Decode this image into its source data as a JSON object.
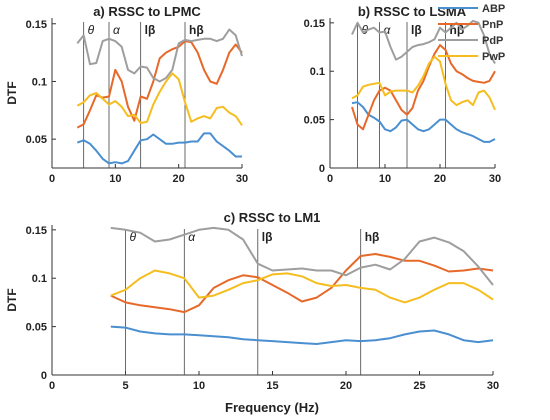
{
  "colors": {
    "ABP": "#4a8fd0",
    "PnP": "#e6692a",
    "PdP": "#9e9e9e",
    "PwP": "#f5bd1f",
    "axis": "#333333",
    "band_line": "#444444"
  },
  "legend": {
    "entries": [
      "ABP",
      "PnP",
      "PdP",
      "PwP"
    ],
    "placement": "top-right"
  },
  "bottom_xlabel": "Frequency (Hz)",
  "chart_data": [
    {
      "type": "line",
      "title": "a) RSSC to LPMC",
      "ylabel": "DTF",
      "xlabel": "",
      "xlim": [
        0,
        30
      ],
      "ylim": [
        0.025,
        0.155
      ],
      "xticks": [
        "0",
        "10",
        "20",
        "30"
      ],
      "yticks": [
        "0.05",
        "0.1",
        "0.15"
      ],
      "grid": false,
      "band_markers": [
        {
          "x": 5,
          "label": "θ"
        },
        {
          "x": 9,
          "label": "α"
        },
        {
          "x": 14,
          "label": "lβ"
        },
        {
          "x": 21,
          "label": "hβ"
        }
      ],
      "x": [
        4,
        5,
        6,
        7,
        8,
        9,
        10,
        11,
        12,
        13,
        14,
        15,
        16,
        17,
        18,
        19,
        20,
        21,
        22,
        23,
        24,
        25,
        26,
        27,
        28,
        29,
        30
      ],
      "series": [
        {
          "name": "ABP",
          "values": [
            0.047,
            0.049,
            0.046,
            0.04,
            0.033,
            0.029,
            0.03,
            0.029,
            0.031,
            0.04,
            0.049,
            0.05,
            0.054,
            0.05,
            0.046,
            0.046,
            0.047,
            0.047,
            0.048,
            0.048,
            0.055,
            0.055,
            0.048,
            0.044,
            0.04,
            0.035,
            0.035
          ]
        },
        {
          "name": "PnP",
          "values": [
            0.06,
            0.063,
            0.075,
            0.088,
            0.086,
            0.087,
            0.11,
            0.1,
            0.078,
            0.066,
            0.087,
            0.085,
            0.1,
            0.12,
            0.125,
            0.128,
            0.13,
            0.135,
            0.134,
            0.125,
            0.11,
            0.1,
            0.098,
            0.11,
            0.125,
            0.132,
            0.125
          ]
        },
        {
          "name": "PdP",
          "values": [
            0.133,
            0.14,
            0.115,
            0.116,
            0.135,
            0.137,
            0.135,
            0.13,
            0.11,
            0.107,
            0.113,
            0.112,
            0.103,
            0.1,
            0.103,
            0.11,
            0.133,
            0.136,
            0.135,
            0.136,
            0.137,
            0.137,
            0.135,
            0.137,
            0.145,
            0.14,
            0.122
          ]
        },
        {
          "name": "PwP",
          "values": [
            0.079,
            0.082,
            0.088,
            0.09,
            0.085,
            0.08,
            0.083,
            0.078,
            0.07,
            0.071,
            0.064,
            0.065,
            0.08,
            0.091,
            0.1,
            0.107,
            0.102,
            0.082,
            0.065,
            0.068,
            0.07,
            0.068,
            0.077,
            0.078,
            0.073,
            0.07,
            0.062
          ]
        }
      ]
    },
    {
      "type": "line",
      "title": "b) RSSC to LSMA",
      "ylabel": "",
      "xlabel": "",
      "xlim": [
        0,
        30
      ],
      "ylim": [
        0,
        0.155
      ],
      "xticks": [
        "0",
        "10",
        "20",
        "30"
      ],
      "yticks": [
        "0",
        "0.05",
        "0.1",
        "0.15"
      ],
      "grid": false,
      "band_markers": [
        {
          "x": 5,
          "label": "θ"
        },
        {
          "x": 9,
          "label": "α"
        },
        {
          "x": 14,
          "label": "lβ"
        },
        {
          "x": 21,
          "label": "hβ"
        }
      ],
      "x": [
        4,
        5,
        6,
        7,
        8,
        9,
        10,
        11,
        12,
        13,
        14,
        15,
        16,
        17,
        18,
        19,
        20,
        21,
        22,
        23,
        24,
        25,
        26,
        27,
        28,
        29,
        30
      ],
      "series": [
        {
          "name": "ABP",
          "values": [
            0.067,
            0.068,
            0.063,
            0.055,
            0.052,
            0.048,
            0.04,
            0.038,
            0.042,
            0.049,
            0.05,
            0.045,
            0.04,
            0.038,
            0.04,
            0.045,
            0.05,
            0.05,
            0.045,
            0.04,
            0.037,
            0.035,
            0.033,
            0.03,
            0.027,
            0.027,
            0.03
          ]
        },
        {
          "name": "PnP",
          "values": [
            0.063,
            0.045,
            0.04,
            0.055,
            0.07,
            0.08,
            0.083,
            0.08,
            0.07,
            0.06,
            0.055,
            0.062,
            0.08,
            0.09,
            0.105,
            0.118,
            0.127,
            0.122,
            0.108,
            0.1,
            0.097,
            0.093,
            0.09,
            0.089,
            0.088,
            0.09,
            0.1
          ]
        },
        {
          "name": "PdP",
          "values": [
            0.138,
            0.15,
            0.14,
            0.143,
            0.145,
            0.14,
            0.141,
            0.125,
            0.112,
            0.115,
            0.12,
            0.125,
            0.127,
            0.128,
            0.13,
            0.133,
            0.145,
            0.14,
            0.145,
            0.15,
            0.143,
            0.147,
            0.152,
            0.15,
            0.137,
            0.118,
            0.108
          ]
        },
        {
          "name": "PwP",
          "values": [
            0.072,
            0.075,
            0.084,
            0.086,
            0.087,
            0.088,
            0.075,
            0.079,
            0.08,
            0.08,
            0.08,
            0.078,
            0.085,
            0.095,
            0.108,
            0.115,
            0.11,
            0.087,
            0.07,
            0.065,
            0.068,
            0.07,
            0.065,
            0.078,
            0.08,
            0.073,
            0.06
          ]
        }
      ]
    },
    {
      "type": "line",
      "title": "c) RSSC to LM1",
      "ylabel": "DTF",
      "xlabel": "Frequency (Hz)",
      "xlim": [
        0,
        30
      ],
      "ylim": [
        0,
        0.155
      ],
      "xticks": [
        "0",
        "5",
        "10",
        "15",
        "20",
        "25",
        "30"
      ],
      "yticks": [
        "0",
        "0.05",
        "0.1",
        "0.15"
      ],
      "grid": false,
      "band_markers": [
        {
          "x": 5,
          "label": "θ"
        },
        {
          "x": 9,
          "label": "α"
        },
        {
          "x": 14,
          "label": "lβ"
        },
        {
          "x": 21,
          "label": "hβ"
        }
      ],
      "x": [
        4,
        5,
        6,
        7,
        8,
        9,
        10,
        11,
        12,
        13,
        14,
        15,
        16,
        17,
        18,
        19,
        20,
        21,
        22,
        23,
        24,
        25,
        26,
        27,
        28,
        29,
        30
      ],
      "series": [
        {
          "name": "ABP",
          "values": [
            0.05,
            0.049,
            0.045,
            0.043,
            0.042,
            0.042,
            0.041,
            0.04,
            0.039,
            0.037,
            0.036,
            0.035,
            0.034,
            0.033,
            0.032,
            0.034,
            0.036,
            0.035,
            0.036,
            0.038,
            0.042,
            0.045,
            0.046,
            0.042,
            0.036,
            0.034,
            0.036
          ]
        },
        {
          "name": "PnP",
          "values": [
            0.082,
            0.075,
            0.072,
            0.07,
            0.068,
            0.065,
            0.072,
            0.09,
            0.098,
            0.103,
            0.101,
            0.093,
            0.085,
            0.076,
            0.08,
            0.09,
            0.108,
            0.123,
            0.125,
            0.122,
            0.118,
            0.118,
            0.113,
            0.107,
            0.108,
            0.11,
            0.108
          ]
        },
        {
          "name": "PdP",
          "values": [
            0.152,
            0.15,
            0.147,
            0.138,
            0.14,
            0.145,
            0.15,
            0.152,
            0.15,
            0.14,
            0.115,
            0.108,
            0.109,
            0.11,
            0.108,
            0.108,
            0.103,
            0.111,
            0.114,
            0.109,
            0.12,
            0.138,
            0.142,
            0.137,
            0.128,
            0.112,
            0.093
          ]
        },
        {
          "name": "PwP",
          "values": [
            0.082,
            0.088,
            0.1,
            0.108,
            0.105,
            0.1,
            0.08,
            0.082,
            0.088,
            0.095,
            0.098,
            0.104,
            0.105,
            0.102,
            0.095,
            0.092,
            0.093,
            0.09,
            0.088,
            0.08,
            0.075,
            0.08,
            0.088,
            0.095,
            0.095,
            0.088,
            0.078
          ]
        }
      ]
    }
  ]
}
